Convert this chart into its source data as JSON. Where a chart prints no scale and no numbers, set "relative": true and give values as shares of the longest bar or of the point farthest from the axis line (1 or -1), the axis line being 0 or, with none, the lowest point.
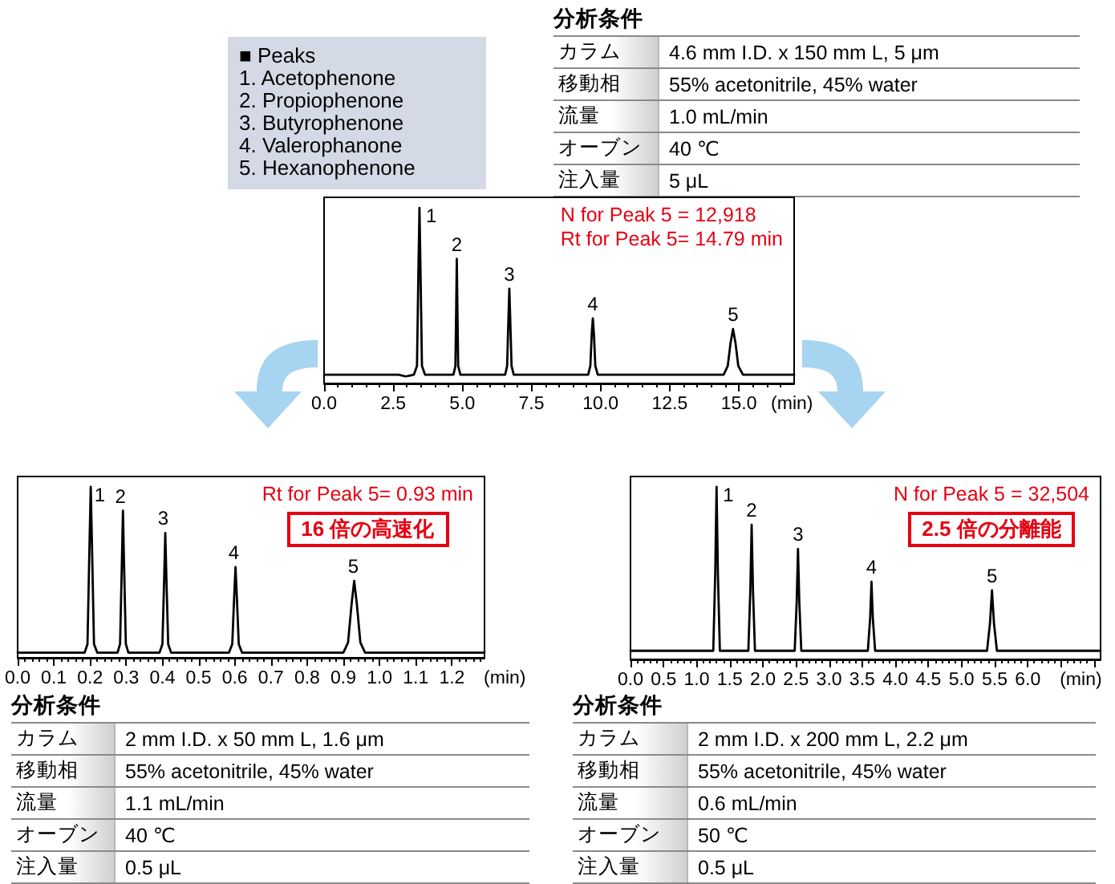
{
  "chart_data": [
    {
      "type": "other",
      "title": "■ Peaks",
      "annotations": [
        "1. Acetophenone",
        "2. Propiophenone",
        "3. Butyrophenone",
        "4. Valerophanone",
        "5. Hexanophenone"
      ]
    },
    {
      "type": "other",
      "title": "分析条件",
      "annotations": [
        "カラム",
        "4.6 mm I.D. x 150 mm L, 5 μm",
        "移動相",
        "55% acetonitrile, 45% water",
        "流量",
        "1.0 mL/min",
        "オーブン",
        "40 ℃",
        "注入量",
        "5 μL"
      ]
    },
    {
      "type": "line",
      "relative": true,
      "color": "#000000",
      "xlabel": "(min)",
      "xlim": [
        0,
        17
      ],
      "xticks": [
        {
          "value": 0,
          "label": "0.0"
        },
        2.5,
        {
          "value": 5,
          "label": "5.0"
        },
        7.5,
        {
          "value": 10,
          "label": "10.0"
        },
        12.5,
        {
          "value": 15,
          "label": "15.0"
        }
      ],
      "x": [
        0,
        2.7,
        2.95,
        3.25,
        3.36,
        3.41,
        3.45,
        3.49,
        3.54,
        3.65,
        4.68,
        4.75,
        4.78,
        4.8,
        4.82,
        4.85,
        4.93,
        6.55,
        6.62,
        6.67,
        6.7,
        6.73,
        6.78,
        6.86,
        9.55,
        9.63,
        9.68,
        9.72,
        9.76,
        9.81,
        9.9,
        14.45,
        14.6,
        14.7,
        14.79,
        14.88,
        14.98,
        15.15,
        17
      ],
      "values": [
        0.05,
        0.05,
        0.04,
        0.05,
        0.1,
        0.62,
        1,
        0.62,
        0.1,
        0.05,
        0.05,
        0.1,
        0.45,
        0.71,
        0.45,
        0.1,
        0.05,
        0.05,
        0.1,
        0.38,
        0.54,
        0.38,
        0.1,
        0.05,
        0.05,
        0.1,
        0.28,
        0.37,
        0.28,
        0.1,
        0.05,
        0.05,
        0.1,
        0.23,
        0.31,
        0.23,
        0.1,
        0.05,
        0.05
      ],
      "annotations": [
        {
          "text": "1",
          "x": 3.45,
          "y": 1
        },
        {
          "text": "2",
          "x": 4.8,
          "y": 0.71
        },
        {
          "text": "3",
          "x": 6.7,
          "y": 0.54
        },
        {
          "text": "4",
          "x": 9.72,
          "y": 0.37
        },
        {
          "text": "5",
          "x": 14.79,
          "y": 0.31
        },
        "N for Peak 5 = 12,918\nRt for Peak 5= 14.79 min"
      ]
    },
    {
      "type": "line",
      "relative": true,
      "color": "#000000",
      "xlabel": "(min)",
      "xlim": [
        0,
        1.29
      ],
      "xticks": [
        {
          "value": 0,
          "label": "0.0"
        },
        0.1,
        0.2,
        0.3,
        0.4,
        0.5,
        0.6,
        0.7,
        0.8,
        0.9,
        {
          "value": 1,
          "label": "1.0"
        },
        1.1,
        1.2
      ],
      "x": [
        0,
        0.185,
        0.193,
        0.198,
        0.202,
        0.206,
        0.211,
        0.22,
        0.276,
        0.283,
        0.288,
        0.291,
        0.294,
        0.299,
        0.306,
        0.392,
        0.4,
        0.405,
        0.408,
        0.411,
        0.416,
        0.424,
        0.584,
        0.593,
        0.598,
        0.602,
        0.606,
        0.611,
        0.62,
        0.9,
        0.913,
        0.923,
        0.93,
        0.937,
        0.947,
        0.96,
        1.29
      ],
      "values": [
        0.03,
        0.03,
        0.08,
        0.6,
        1,
        0.6,
        0.08,
        0.03,
        0.03,
        0.08,
        0.55,
        0.86,
        0.55,
        0.08,
        0.03,
        0.03,
        0.08,
        0.47,
        0.73,
        0.47,
        0.08,
        0.03,
        0.03,
        0.08,
        0.34,
        0.53,
        0.34,
        0.08,
        0.03,
        0.03,
        0.09,
        0.32,
        0.45,
        0.32,
        0.09,
        0.03,
        0.03
      ],
      "annotations": [
        {
          "text": "1",
          "x": 0.202,
          "y": 1
        },
        {
          "text": "2",
          "x": 0.291,
          "y": 0.86
        },
        {
          "text": "3",
          "x": 0.408,
          "y": 0.73
        },
        {
          "text": "4",
          "x": 0.602,
          "y": 0.53
        },
        {
          "text": "5",
          "x": 0.93,
          "y": 0.45
        },
        "Rt for Peak 5= 0.93 min",
        "16 倍の高速化"
      ]
    },
    {
      "type": "line",
      "relative": true,
      "color": "#000000",
      "xlabel": "(min)",
      "xlim": [
        0,
        7.1
      ],
      "xticks": [
        {
          "value": 0,
          "label": "0.0"
        },
        0.5,
        {
          "value": 1,
          "label": "1.0"
        },
        1.5,
        {
          "value": 2,
          "label": "2.0"
        },
        2.5,
        {
          "value": 3,
          "label": "3.0"
        },
        3.5,
        {
          "value": 4,
          "label": "4.0"
        },
        4.5,
        {
          "value": 5,
          "label": "5.0"
        },
        5.5,
        {
          "value": 6,
          "label": "6.0"
        },
        {
          "value": 6.5,
          "label": null
        },
        {
          "value": 7,
          "label": null
        }
      ],
      "x": [
        0,
        1.25,
        1.28,
        1.3,
        1.32,
        1.35,
        1.78,
        1.81,
        1.83,
        1.85,
        1.88,
        2.48,
        2.51,
        2.53,
        2.55,
        2.58,
        3.585,
        3.62,
        3.64,
        3.66,
        3.695,
        5.385,
        5.43,
        5.46,
        5.49,
        5.535,
        7.1
      ],
      "values": [
        0.05,
        0.05,
        0.5,
        1,
        0.5,
        0.05,
        0.05,
        0.4,
        0.78,
        0.4,
        0.05,
        0.05,
        0.33,
        0.64,
        0.33,
        0.05,
        0.05,
        0.24,
        0.45,
        0.24,
        0.05,
        0.05,
        0.21,
        0.4,
        0.21,
        0.05,
        0.05
      ],
      "annotations": [
        {
          "text": "1",
          "x": 1.3,
          "y": 1
        },
        {
          "text": "2",
          "x": 1.83,
          "y": 0.78
        },
        {
          "text": "3",
          "x": 2.53,
          "y": 0.64
        },
        {
          "text": "4",
          "x": 3.64,
          "y": 0.45
        },
        {
          "text": "5",
          "x": 5.46,
          "y": 0.4
        },
        "N for Peak 5 = 32,504",
        "2.5 倍の分離能"
      ]
    },
    {
      "type": "other",
      "title": "分析条件",
      "annotations": [
        "カラム",
        "2 mm I.D. x 50 mm L, 1.6 μm",
        "移動相",
        "55% acetonitrile, 45% water",
        "流量",
        "1.1 mL/min",
        "オーブン",
        "40 ℃",
        "注入量",
        "0.5 μL"
      ]
    },
    {
      "type": "other",
      "title": "分析条件",
      "annotations": [
        "カラム",
        "2 mm I.D. x 200 mm L, 2.2 μm",
        "移動相",
        "55% acetonitrile, 45% water",
        "流量",
        "0.6 mL/min",
        "オーブン",
        "50 ℃",
        "注入量",
        "0.5 μL"
      ]
    }
  ]
}
